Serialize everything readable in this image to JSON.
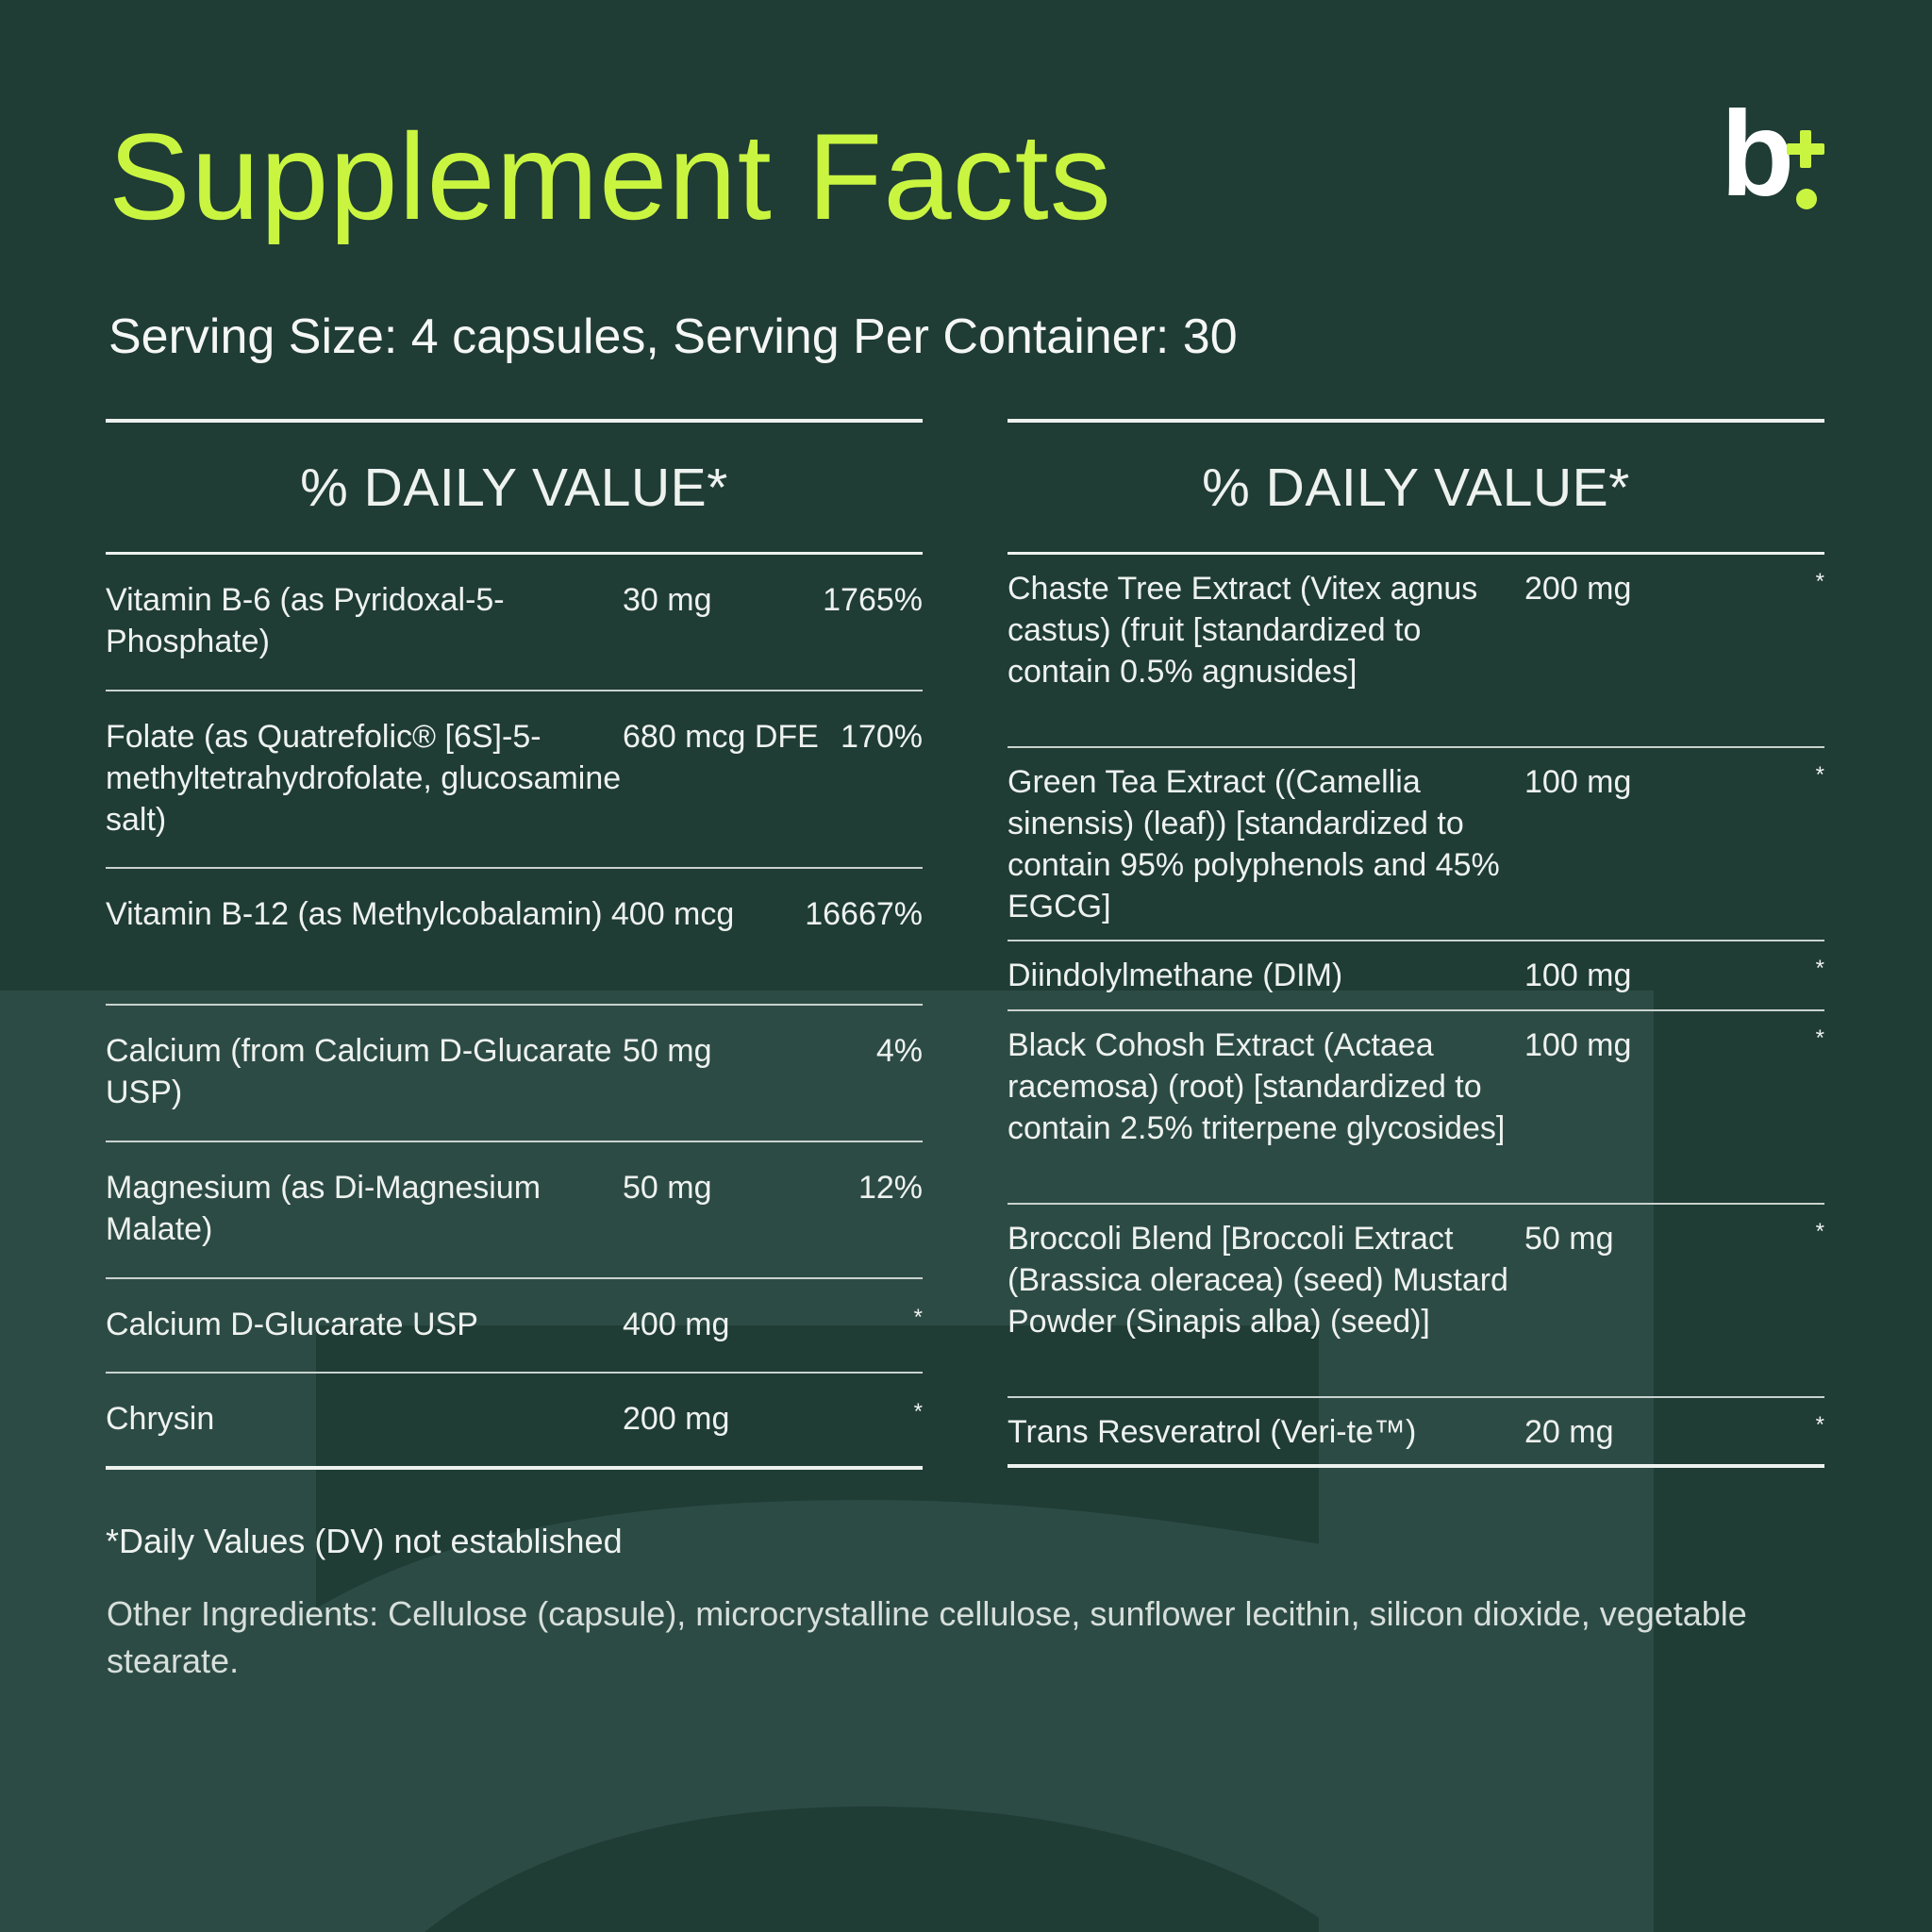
{
  "colors": {
    "background": "#1f3c35",
    "watermark": "#2d4b45",
    "accent": "#c9f541",
    "text": "#eef2ef"
  },
  "header": {
    "title": "Supplement Facts",
    "logo": {
      "icon": "brand-logo-b-plus"
    }
  },
  "serving": "Serving Size: 4 capsules, Serving Per Container: 30",
  "left_table": {
    "heading": "% DAILY VALUE*",
    "rows": [
      {
        "name": "Vitamin B-6 (as Pyridoxal-5-Phosphate)",
        "amount": "30 mg",
        "dv": "1765%"
      },
      {
        "name": "Folate (as Quatrefolic® [6S]-5-methyltetrahydrofolate, glucosamine salt)",
        "amount": "680 mcg DFE",
        "dv": "170%"
      },
      {
        "name": "Vitamin B-12 (as Methylcobalamin)",
        "amount": "400 mcg",
        "dv": "16667%"
      },
      {
        "name": "Calcium (from Calcium D-Glucarate USP)",
        "amount": "50 mg",
        "dv": "4%"
      },
      {
        "name": "Magnesium (as Di-Magnesium Malate)",
        "amount": "50 mg",
        "dv": "12%"
      },
      {
        "name": "Calcium D-Glucarate USP",
        "amount": "400 mg",
        "dv": "*"
      },
      {
        "name": "Chrysin",
        "amount": "200 mg",
        "dv": "*"
      }
    ]
  },
  "right_table": {
    "heading": "% DAILY VALUE*",
    "rows": [
      {
        "name": "Chaste Tree Extract (Vitex agnus castus) (fruit [standardized to contain 0.5% agnusides]",
        "amount": "200 mg",
        "dv": "*"
      },
      {
        "name": "Green Tea Extract ((Camellia sinensis) (leaf)) [standardized to contain 95% polyphenols and 45% EGCG]",
        "amount": "100 mg",
        "dv": "*"
      },
      {
        "name": "Diindolylmethane (DIM)",
        "amount": "100 mg",
        "dv": "*"
      },
      {
        "name": "Black Cohosh Extract (Actaea racemosa) (root) [standardized to contain 2.5% triterpene glycosides]",
        "amount": "100 mg",
        "dv": "*"
      },
      {
        "name": "Broccoli Blend [Broccoli Extract (Brassica oleracea) (seed) Mustard Powder (Sinapis alba) (seed)]",
        "amount": "50 mg",
        "dv": "*"
      },
      {
        "name": "Trans Resveratrol (Veri-te™)",
        "amount": "20 mg",
        "dv": "*"
      }
    ]
  },
  "footnote": "*Daily Values (DV) not established",
  "other_ingredients": "Other Ingredients: Cellulose (capsule), microcrystalline cellulose, sunflower lecithin, silicon dioxide, vegetable stearate."
}
